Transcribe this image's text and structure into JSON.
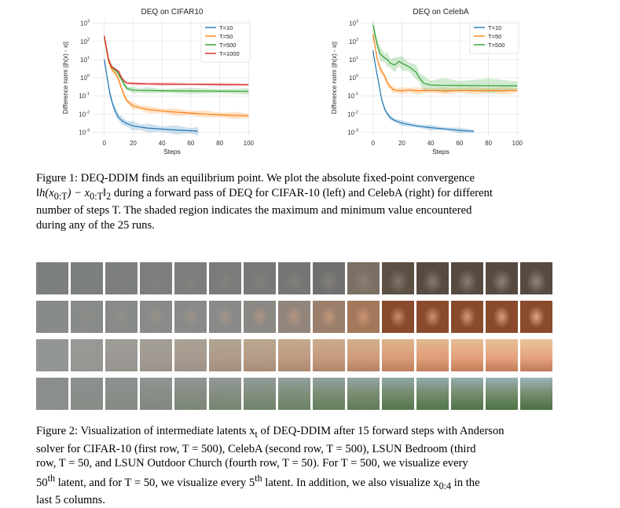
{
  "figure1": {
    "caption_parts": [
      "Figure 1: DEQ-DDIM finds an equilibrium point. We plot the absolute fixed-point convergence",
      "‖h(x",
      "0:T",
      ") − x",
      "0:T",
      "‖",
      "2",
      " during a forward pass of DEQ for CIFAR-10 (left) and CelebA (right) for different",
      "number of steps T. The shaded region indicates the maximum and minimum value encountered",
      "during any of the 25 runs."
    ]
  },
  "chart_data": [
    {
      "type": "line",
      "title": "DEQ on CIFAR10",
      "xlabel": "Steps",
      "ylabel": "Difference norm ||h(x) - x||",
      "yscale": "log",
      "xlim": [
        -8,
        102
      ],
      "ylim_exp": [
        -3.2,
        3.2
      ],
      "xticks": [
        "0",
        "20",
        "40",
        "60",
        "80",
        "100"
      ],
      "yticks_exp": [
        "-3",
        "-2",
        "-1",
        "0",
        "1",
        "2",
        "3"
      ],
      "legend_position": "top-right",
      "series": [
        {
          "name": "T=10",
          "color": "#1f77b4",
          "x": [
            0,
            2,
            4,
            6,
            8,
            10,
            12,
            15,
            20,
            25,
            30,
            40,
            50,
            60,
            65
          ],
          "y_exp": [
            1.0,
            0.0,
            -0.9,
            -1.5,
            -1.9,
            -2.2,
            -2.35,
            -2.5,
            -2.65,
            -2.72,
            -2.77,
            -2.83,
            -2.88,
            -2.92,
            -2.95
          ],
          "band_exp": 0.25
        },
        {
          "name": "T=50",
          "color": "#ff7f0e",
          "x": [
            0,
            3,
            5,
            8,
            10,
            12,
            14,
            16,
            20,
            25,
            30,
            40,
            50,
            60,
            70,
            80,
            90,
            100
          ],
          "y_exp": [
            2.2,
            0.9,
            0.5,
            0.2,
            -0.1,
            -0.6,
            -1.0,
            -1.3,
            -1.55,
            -1.65,
            -1.75,
            -1.83,
            -1.9,
            -1.95,
            -2.0,
            -2.05,
            -2.08,
            -2.1
          ],
          "band_exp": 0.2
        },
        {
          "name": "T=500",
          "color": "#2ca02c",
          "x": [
            0,
            3,
            5,
            8,
            10,
            12,
            14,
            16,
            20,
            25,
            30,
            40,
            60,
            80,
            100
          ],
          "y_exp": [
            2.3,
            1.0,
            0.6,
            0.4,
            0.2,
            -0.1,
            -0.4,
            -0.6,
            -0.68,
            -0.7,
            -0.7,
            -0.72,
            -0.73,
            -0.74,
            -0.75
          ],
          "band_exp": 0.18
        },
        {
          "name": "T=1000",
          "color": "#d62728",
          "x": [
            0,
            3,
            5,
            8,
            10,
            12,
            14,
            16,
            20,
            30,
            40,
            60,
            80,
            100
          ],
          "y_exp": [
            2.3,
            1.0,
            0.6,
            0.45,
            0.35,
            0.0,
            -0.2,
            -0.3,
            -0.32,
            -0.34,
            -0.35,
            -0.36,
            -0.37,
            -0.38
          ],
          "band_exp": 0.1
        }
      ]
    },
    {
      "type": "line",
      "title": "DEQ on CelebA",
      "xlabel": "Steps",
      "ylabel": "Difference norm ||h(x) - x||",
      "yscale": "log",
      "xlim": [
        -8,
        102
      ],
      "ylim_exp": [
        -3.2,
        3.2
      ],
      "xticks": [
        "0",
        "20",
        "40",
        "60",
        "80",
        "100"
      ],
      "yticks_exp": [
        "-3",
        "-2",
        "-1",
        "0",
        "1",
        "2",
        "3"
      ],
      "legend_position": "top-right",
      "series": [
        {
          "name": "T=10",
          "color": "#1f77b4",
          "x": [
            0,
            2,
            4,
            6,
            8,
            10,
            12,
            15,
            20,
            30,
            40,
            50,
            60,
            70
          ],
          "y_exp": [
            1.5,
            0.5,
            -0.3,
            -1.2,
            -1.7,
            -2.0,
            -2.2,
            -2.35,
            -2.5,
            -2.65,
            -2.75,
            -2.82,
            -2.9,
            -2.95
          ],
          "band_exp": 0.15
        },
        {
          "name": "T=50",
          "color": "#ff7f0e",
          "x": [
            0,
            3,
            5,
            8,
            10,
            12,
            14,
            16,
            20,
            25,
            30,
            40,
            50,
            60,
            70,
            80,
            90,
            100
          ],
          "y_exp": [
            2.4,
            1.0,
            0.5,
            0.1,
            -0.3,
            -0.5,
            -0.65,
            -0.7,
            -0.72,
            -0.68,
            -0.72,
            -0.7,
            -0.73,
            -0.7,
            -0.72,
            -0.7,
            -0.72,
            -0.7
          ],
          "band_exp": 0.2
        },
        {
          "name": "T=500",
          "color": "#2ca02c",
          "x": [
            0,
            3,
            5,
            8,
            10,
            12,
            15,
            18,
            20,
            25,
            30,
            32,
            35,
            40,
            50,
            60,
            80,
            100
          ],
          "y_exp": [
            2.9,
            1.8,
            1.3,
            1.1,
            1.0,
            0.8,
            0.7,
            0.9,
            0.8,
            0.6,
            0.3,
            0.0,
            -0.3,
            -0.4,
            -0.42,
            -0.43,
            -0.44,
            -0.45
          ],
          "band_exp": 0.4
        }
      ]
    }
  ],
  "figure2": {
    "caption_parts": [
      "Figure 2: Visualization of intermediate latents x",
      "t",
      " of DEQ-DDIM after 15 forward steps with Anderson",
      "solver for CIFAR-10 (first row, T = 500), CelebA (second row, T = 500), LSUN Bedroom (third",
      "row, T = 50, and LSUN Outdoor Church (fourth row, T = 50). For T = 500, we visualize every",
      "50",
      "th",
      " latent, and for T = 50, we visualize every 5",
      "th",
      " latent. In addition, we also visualize x",
      "0:4",
      " in the",
      "last 5 columns."
    ],
    "rows": [
      {
        "name": "cifar10-row",
        "subject": "cat",
        "colors": [
          "#7a7a7a",
          "#7a7a7a",
          "#7a7a7a",
          "#7a7a7a",
          "#7a7a7a",
          "#787878",
          "#767676",
          "#737373",
          "#6e6e6e",
          "#7b6e62",
          "#5c4f44",
          "#564a41",
          "#564a41",
          "#564a41",
          "#564a41"
        ]
      },
      {
        "name": "celeba-row",
        "subject": "face",
        "colors": [
          "#8a8a8a",
          "#8a8a8a",
          "#8a8a8a",
          "#8a8a8a",
          "#8a8a8a",
          "#8a8a8a",
          "#8d8884",
          "#94847a",
          "#9c7e6a",
          "#a5775a",
          "#8a4a2c",
          "#8a4a2c",
          "#8a4a2c",
          "#8a4a2c",
          "#8a4a2c"
        ]
      },
      {
        "name": "lsun-bedroom-row",
        "subject": "bedroom",
        "colors": [
          "#9a9a9a",
          "#9a9a9a",
          "#9b9a98",
          "#9d9a96",
          "#a09a92",
          "#a4988c",
          "#a89684",
          "#ad937c",
          "#b29074",
          "#b88d6c",
          "#c48c64",
          "#c98c60",
          "#cc8d5e",
          "#cc8d5e",
          "#cc8d5e"
        ]
      },
      {
        "name": "lsun-church-row",
        "subject": "church",
        "colors": [
          "#8e8e8e",
          "#8e8e8e",
          "#8e8e8e",
          "#8d8e8c",
          "#8c8e8a",
          "#8a8e87",
          "#878e83",
          "#848f7f",
          "#7f8e78",
          "#7b8d74",
          "#6f8a6c",
          "#6c8a6a",
          "#6a8a68",
          "#6a8a68",
          "#6a8a68"
        ]
      }
    ]
  }
}
